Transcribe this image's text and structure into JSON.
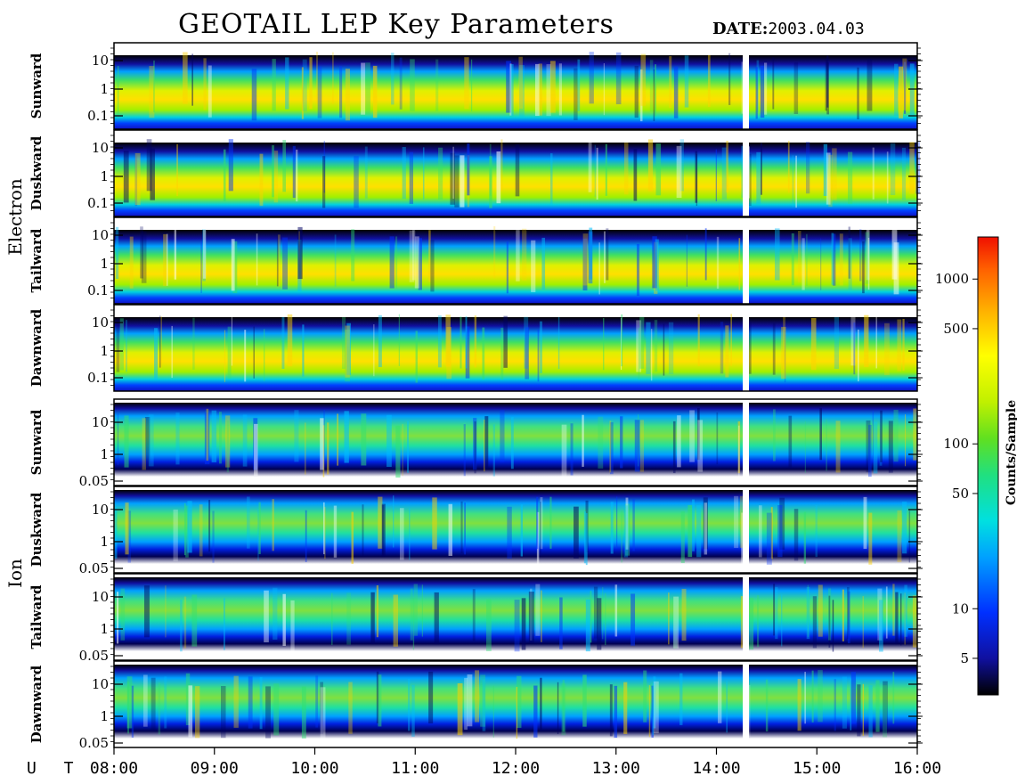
{
  "title": "GEOTAIL LEP Key Parameters",
  "date_label": "DATE:",
  "date_value": "2003.04.03",
  "chart_data": {
    "type": "heatmap",
    "x_label": "U T",
    "x_ticks": [
      "08:00",
      "09:00",
      "10:00",
      "11:00",
      "12:00",
      "13:00",
      "14:00",
      "15:00",
      "16:00"
    ],
    "groups": [
      {
        "name": "Electron",
        "y_ticks": [
          "10",
          "1",
          "0.1"
        ],
        "panels": [
          "Sunward",
          "Duskward",
          "Tailward",
          "Dawnward"
        ]
      },
      {
        "name": "Ion",
        "y_ticks": [
          "10",
          "1",
          "0.05"
        ],
        "panels": [
          "Sunward",
          "Duskward",
          "Tailward",
          "Dawnward"
        ]
      }
    ],
    "colorbar": {
      "label": "Counts/Sample",
      "ticks": [
        "1000",
        "500",
        "100",
        "50",
        "10",
        "5"
      ],
      "scale": "log",
      "colors": [
        "#000000",
        "#1010a0",
        "#0030ff",
        "#00a0ff",
        "#00e0e0",
        "#20e080",
        "#60e020",
        "#c0f000",
        "#ffff00",
        "#ffb000",
        "#ff6000",
        "#f01000"
      ]
    }
  }
}
